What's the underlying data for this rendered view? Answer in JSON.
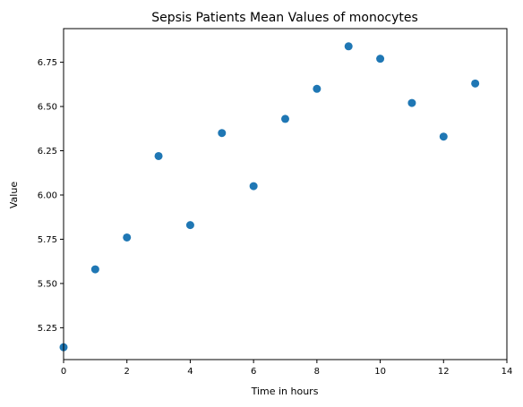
{
  "chart_data": {
    "type": "scatter",
    "title": "Sepsis Patients Mean Values of monocytes",
    "xlabel": "Time in hours",
    "ylabel": "Value",
    "xlim": [
      0,
      14
    ],
    "ylim": [
      5.07,
      6.94
    ],
    "x_ticks": [
      0,
      2,
      4,
      6,
      8,
      10,
      12,
      14
    ],
    "y_ticks": [
      5.25,
      5.5,
      5.75,
      6.0,
      6.25,
      6.5,
      6.75
    ],
    "x_tick_labels": [
      "0",
      "2",
      "4",
      "6",
      "8",
      "10",
      "12",
      "14"
    ],
    "y_tick_labels": [
      "5.25",
      "5.50",
      "5.75",
      "6.00",
      "6.25",
      "6.50",
      "6.75"
    ],
    "grid": false,
    "marker_color": "#1f77b4",
    "series": [
      {
        "name": "monocytes",
        "x": [
          0,
          1,
          2,
          3,
          4,
          5,
          6,
          7,
          8,
          9,
          10,
          11,
          12,
          13
        ],
        "y": [
          5.14,
          5.58,
          5.76,
          6.22,
          5.83,
          6.35,
          6.05,
          6.43,
          6.6,
          6.84,
          6.77,
          6.52,
          6.33,
          6.63
        ]
      }
    ]
  }
}
